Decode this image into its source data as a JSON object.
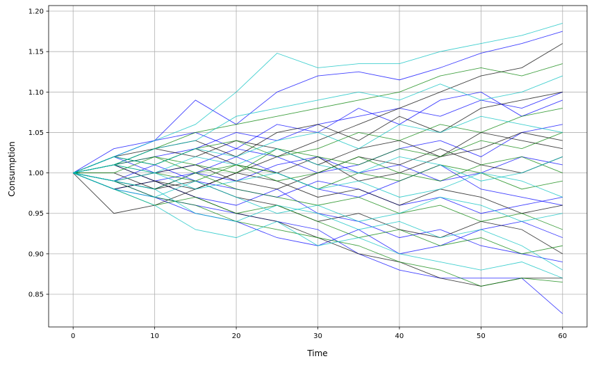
{
  "chart_data": {
    "type": "line",
    "title": "",
    "xlabel": "Time",
    "ylabel": "Consumption",
    "xlim": [
      -3,
      63
    ],
    "ylim": [
      0.8096,
      1.2069
    ],
    "xticks": [
      0,
      10,
      20,
      30,
      40,
      50,
      60
    ],
    "xtick_labels": [
      "0",
      "10",
      "20",
      "30",
      "40",
      "50",
      "60"
    ],
    "yticks": [
      0.85,
      0.9,
      0.95,
      1.0,
      1.05,
      1.1,
      1.15,
      1.2
    ],
    "ytick_labels": [
      "0.85",
      "0.90",
      "0.95",
      "1.00",
      "1.05",
      "1.10",
      "1.15",
      "1.20"
    ],
    "grid": true,
    "legend": "none",
    "colors": {
      "blue": "#0000ff",
      "black": "#000000",
      "green": "#008000",
      "cyan": "#00bfbf"
    },
    "x": [
      0,
      5,
      10,
      15,
      20,
      25,
      30,
      35,
      40,
      45,
      50,
      55,
      60
    ],
    "series": [
      {
        "color": "blue",
        "y": [
          1.0,
          1.03,
          1.04,
          1.09,
          1.06,
          1.1,
          1.12,
          1.125,
          1.115,
          1.13,
          1.148,
          1.16,
          1.175
        ]
      },
      {
        "color": "blue",
        "y": [
          1.0,
          0.99,
          0.97,
          0.96,
          0.95,
          0.94,
          0.93,
          0.9,
          0.88,
          0.87,
          0.87,
          0.87,
          0.826
        ]
      },
      {
        "color": "blue",
        "y": [
          1.0,
          1.01,
          1.02,
          1.03,
          1.05,
          1.04,
          1.06,
          1.07,
          1.08,
          1.07,
          1.09,
          1.08,
          1.1
        ]
      },
      {
        "color": "blue",
        "y": [
          1.0,
          0.98,
          0.99,
          0.97,
          0.96,
          0.98,
          0.95,
          0.94,
          0.92,
          0.93,
          0.91,
          0.9,
          0.89
        ]
      },
      {
        "color": "blue",
        "y": [
          1.0,
          1.02,
          1.0,
          1.01,
          1.03,
          1.02,
          1.0,
          1.01,
          1.03,
          1.04,
          1.02,
          1.05,
          1.06
        ]
      },
      {
        "color": "blue",
        "y": [
          1.0,
          0.99,
          1.01,
          0.99,
          0.98,
          0.97,
          0.99,
          0.98,
          0.96,
          0.97,
          0.95,
          0.96,
          0.97
        ]
      },
      {
        "color": "blue",
        "y": [
          1.0,
          1.01,
          0.99,
          1.0,
          0.99,
          1.01,
          1.02,
          1.0,
          1.01,
          0.99,
          1.0,
          1.02,
          1.01
        ]
      },
      {
        "color": "blue",
        "y": [
          1.0,
          0.98,
          0.97,
          0.95,
          0.94,
          0.92,
          0.91,
          0.93,
          0.9,
          0.91,
          0.93,
          0.94,
          0.92
        ]
      },
      {
        "color": "blue",
        "y": [
          1.0,
          1.02,
          1.04,
          1.05,
          1.03,
          1.06,
          1.05,
          1.08,
          1.06,
          1.09,
          1.1,
          1.07,
          1.09
        ]
      },
      {
        "color": "blue",
        "y": [
          1.0,
          0.99,
          0.98,
          1.0,
          1.02,
          1.0,
          0.98,
          0.97,
          0.99,
          1.01,
          0.98,
          0.97,
          0.96
        ]
      },
      {
        "color": "black",
        "y": [
          1.0,
          0.95,
          0.96,
          0.98,
          1.0,
          1.02,
          1.04,
          1.06,
          1.08,
          1.1,
          1.12,
          1.13,
          1.16
        ]
      },
      {
        "color": "black",
        "y": [
          1.0,
          1.01,
          0.99,
          0.97,
          0.95,
          0.94,
          0.92,
          0.9,
          0.89,
          0.87,
          0.86,
          0.87,
          0.87
        ]
      },
      {
        "color": "black",
        "y": [
          1.0,
          1.02,
          1.03,
          1.04,
          1.02,
          1.05,
          1.06,
          1.04,
          1.07,
          1.05,
          1.08,
          1.09,
          1.1
        ]
      },
      {
        "color": "black",
        "y": [
          1.0,
          0.99,
          1.0,
          1.01,
          0.99,
          0.98,
          1.0,
          1.02,
          1.01,
          1.03,
          1.01,
          1.0,
          1.02
        ]
      },
      {
        "color": "black",
        "y": [
          1.0,
          1.0,
          0.98,
          0.99,
          0.97,
          0.96,
          0.94,
          0.95,
          0.93,
          0.92,
          0.94,
          0.93,
          0.9
        ]
      },
      {
        "color": "black",
        "y": [
          1.0,
          1.01,
          1.03,
          1.02,
          1.04,
          1.03,
          1.01,
          1.03,
          1.04,
          1.02,
          1.05,
          1.04,
          1.03
        ]
      },
      {
        "color": "black",
        "y": [
          1.0,
          0.98,
          0.99,
          0.98,
          1.0,
          0.99,
          0.97,
          0.98,
          0.96,
          0.98,
          0.97,
          0.95,
          0.96
        ]
      },
      {
        "color": "black",
        "y": [
          1.0,
          1.02,
          1.01,
          1.03,
          1.01,
          1.0,
          1.02,
          0.99,
          1.0,
          1.02,
          1.03,
          1.05,
          1.04
        ]
      },
      {
        "color": "green",
        "y": [
          1.0,
          1.01,
          1.03,
          1.05,
          1.06,
          1.07,
          1.08,
          1.09,
          1.1,
          1.12,
          1.13,
          1.12,
          1.135
        ]
      },
      {
        "color": "green",
        "y": [
          1.0,
          0.99,
          0.97,
          0.96,
          0.94,
          0.93,
          0.92,
          0.91,
          0.89,
          0.88,
          0.86,
          0.87,
          0.865
        ]
      },
      {
        "color": "green",
        "y": [
          1.0,
          1.02,
          1.01,
          1.03,
          1.04,
          1.02,
          1.03,
          1.05,
          1.04,
          1.06,
          1.05,
          1.07,
          1.08
        ]
      },
      {
        "color": "green",
        "y": [
          1.0,
          0.98,
          0.96,
          0.97,
          0.95,
          0.96,
          0.94,
          0.92,
          0.93,
          0.91,
          0.92,
          0.9,
          0.91
        ]
      },
      {
        "color": "green",
        "y": [
          1.0,
          1.01,
          1.0,
          0.99,
          1.01,
          1.0,
          0.98,
          1.0,
          0.99,
          1.01,
          1.0,
          0.98,
          0.99
        ]
      },
      {
        "color": "green",
        "y": [
          1.0,
          1.0,
          1.02,
          1.01,
          1.0,
          1.03,
          1.02,
          1.01,
          1.03,
          1.02,
          1.04,
          1.03,
          1.05
        ]
      },
      {
        "color": "green",
        "y": [
          1.0,
          0.99,
          0.98,
          1.0,
          0.98,
          0.97,
          0.96,
          0.97,
          0.95,
          0.96,
          0.94,
          0.95,
          0.93
        ]
      },
      {
        "color": "green",
        "y": [
          1.0,
          1.01,
          1.02,
          1.0,
          1.01,
          0.99,
          1.0,
          1.02,
          1.0,
          0.99,
          1.01,
          1.02,
          1.0
        ]
      },
      {
        "color": "cyan",
        "y": [
          1.0,
          1.02,
          1.04,
          1.06,
          1.1,
          1.148,
          1.13,
          1.135,
          1.135,
          1.15,
          1.16,
          1.17,
          1.185
        ]
      },
      {
        "color": "cyan",
        "y": [
          1.0,
          0.98,
          0.96,
          0.93,
          0.92,
          0.94,
          0.91,
          0.92,
          0.9,
          0.89,
          0.88,
          0.89,
          0.87
        ]
      },
      {
        "color": "cyan",
        "y": [
          1.0,
          1.01,
          1.03,
          1.04,
          1.07,
          1.08,
          1.09,
          1.1,
          1.09,
          1.11,
          1.09,
          1.1,
          1.12
        ]
      },
      {
        "color": "cyan",
        "y": [
          1.0,
          0.99,
          0.98,
          0.95,
          0.94,
          0.96,
          0.95,
          0.93,
          0.94,
          0.92,
          0.93,
          0.91,
          0.88
        ]
      },
      {
        "color": "cyan",
        "y": [
          1.0,
          1.01,
          1.0,
          1.02,
          1.01,
          1.03,
          1.01,
          1.0,
          1.02,
          1.01,
          0.99,
          1.0,
          1.02
        ]
      },
      {
        "color": "cyan",
        "y": [
          1.0,
          0.99,
          1.0,
          0.98,
          0.99,
          1.0,
          0.98,
          0.99,
          0.97,
          0.98,
          1.0,
          0.99,
          0.97
        ]
      },
      {
        "color": "cyan",
        "y": [
          1.0,
          1.02,
          1.01,
          1.03,
          1.02,
          1.04,
          1.05,
          1.03,
          1.06,
          1.05,
          1.07,
          1.06,
          1.05
        ]
      },
      {
        "color": "cyan",
        "y": [
          1.0,
          0.98,
          0.97,
          0.99,
          0.97,
          0.95,
          0.96,
          0.94,
          0.95,
          0.97,
          0.96,
          0.94,
          0.95
        ]
      }
    ]
  }
}
